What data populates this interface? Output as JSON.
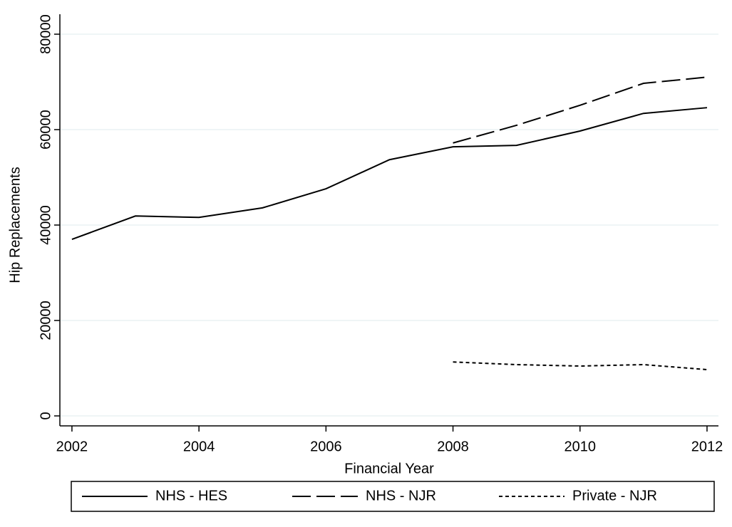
{
  "chart_data": {
    "type": "line",
    "x_label": "Financial Year",
    "y_label": "Hip Replacements",
    "x": [
      2002,
      2003,
      2004,
      2005,
      2006,
      2007,
      2008,
      2009,
      2010,
      2011,
      2012
    ],
    "series": [
      {
        "name": "NHS - HES",
        "color": "#000000",
        "line_style": "solid",
        "values": [
          37000,
          41900,
          41600,
          43600,
          47600,
          53700,
          56400,
          56700,
          59700,
          63400,
          64600
        ]
      },
      {
        "name": "NHS - NJR",
        "color": "#000000",
        "line_style": "dashed",
        "values": [
          null,
          null,
          null,
          null,
          null,
          null,
          57200,
          60900,
          65100,
          69700,
          71000
        ]
      },
      {
        "name": "Private - NJR",
        "color": "#000000",
        "line_style": "dotted",
        "values": [
          null,
          null,
          null,
          null,
          null,
          null,
          11300,
          10750,
          10450,
          10750,
          9700
        ]
      }
    ],
    "xlim": [
      2001.81,
      2012.18
    ],
    "ylim": [
      -2090,
      84180
    ],
    "xticks": [
      2002,
      2004,
      2006,
      2008,
      2010,
      2012
    ],
    "yticks": [
      0,
      20000,
      40000,
      60000,
      80000
    ],
    "grid": true,
    "grid_color": "#eaf2f3",
    "legend_position": "bottom"
  }
}
